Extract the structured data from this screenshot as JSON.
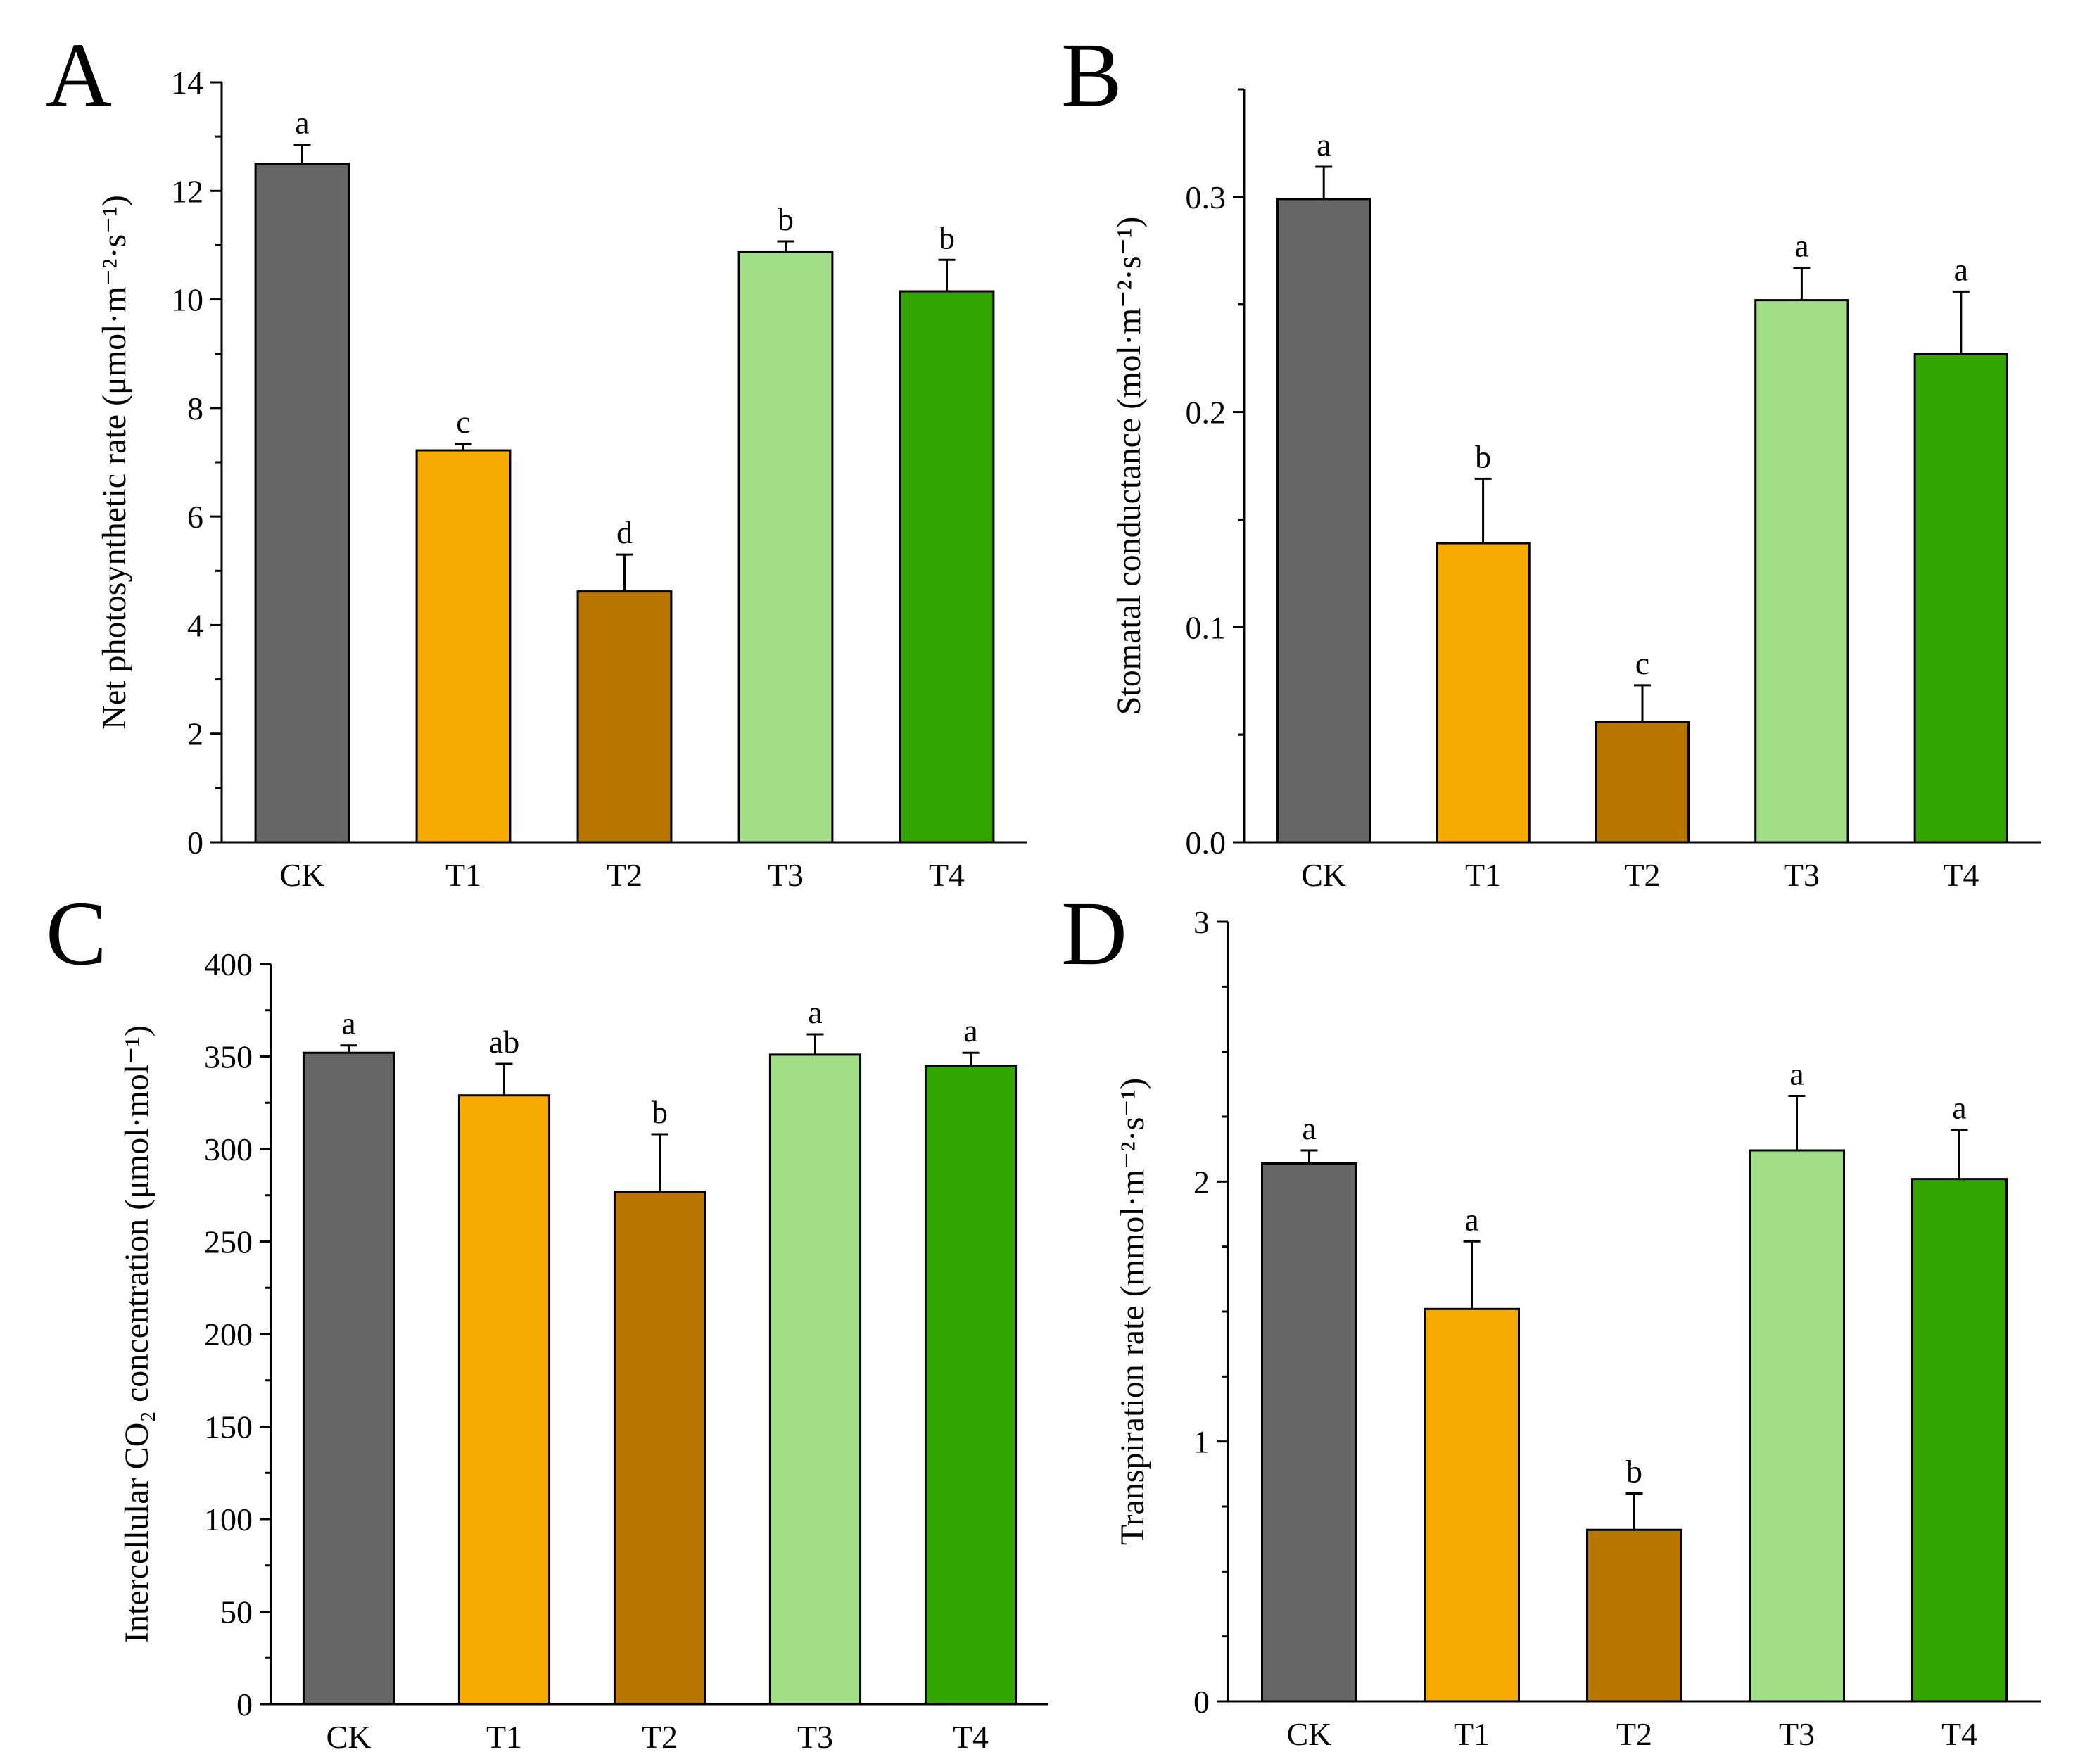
{
  "colors": {
    "CK": "#666666",
    "T1": "#f7aa00",
    "T2": "#b87600",
    "T3": "#a0df86",
    "T4": "#33a500"
  },
  "chart_data": [
    {
      "type": "bar",
      "panel": "A",
      "ylabel": "Net photosynthetic rate (μmol·m⁻²·s⁻¹)",
      "categories": [
        "CK",
        "T1",
        "T2",
        "T3",
        "T4"
      ],
      "values": [
        12.5,
        7.22,
        4.62,
        10.87,
        10.15
      ],
      "errors": [
        0.35,
        0.12,
        0.68,
        0.2,
        0.58
      ],
      "significance": [
        "a",
        "c",
        "d",
        "b",
        "b"
      ],
      "ylim": [
        0,
        14
      ],
      "yticks": [
        "0",
        "2",
        "4",
        "6",
        "8",
        "10",
        "12",
        "14"
      ]
    },
    {
      "type": "bar",
      "panel": "B",
      "ylabel": "Stomatal conductance (mol·m⁻²·s⁻¹)",
      "categories": [
        "CK",
        "T1",
        "T2",
        "T3",
        "T4"
      ],
      "values": [
        0.299,
        0.139,
        0.056,
        0.252,
        0.227
      ],
      "errors": [
        0.015,
        0.03,
        0.017,
        0.015,
        0.029
      ],
      "significance": [
        "a",
        "b",
        "c",
        "a",
        "a"
      ],
      "ylim": [
        0,
        0.35
      ],
      "yticks": [
        "0.0",
        "0.1",
        "0.2",
        "0.3"
      ]
    },
    {
      "type": "bar",
      "panel": "C",
      "ylabel": "Intercellular CO₂ concentration (μmol·mol⁻¹)",
      "categories": [
        "CK",
        "T1",
        "T2",
        "T3",
        "T4"
      ],
      "values": [
        352,
        329,
        277,
        351,
        345
      ],
      "errors": [
        4,
        17,
        31,
        11,
        7
      ],
      "significance": [
        "a",
        "ab",
        "b",
        "a",
        "a"
      ],
      "ylim": [
        0,
        400
      ],
      "yticks": [
        "0",
        "50",
        "100",
        "150",
        "200",
        "250",
        "300",
        "350",
        "400"
      ]
    },
    {
      "type": "bar",
      "panel": "D",
      "ylabel": "Transpiration rate (mmol·m⁻²·s⁻¹)",
      "categories": [
        "CK",
        "T1",
        "T2",
        "T3",
        "T4"
      ],
      "values": [
        2.07,
        1.51,
        0.66,
        2.12,
        2.01
      ],
      "errors": [
        0.05,
        0.26,
        0.14,
        0.21,
        0.19
      ],
      "significance": [
        "a",
        "a",
        "b",
        "a",
        "a"
      ],
      "ylim": [
        0,
        3
      ],
      "yticks": [
        "0",
        "1",
        "2",
        "3"
      ]
    }
  ]
}
